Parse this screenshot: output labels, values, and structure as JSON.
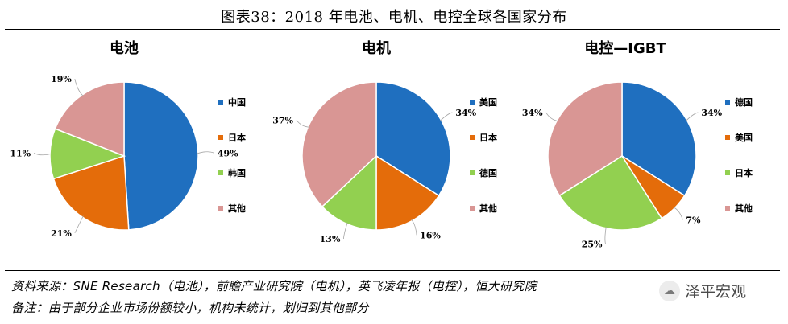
{
  "figure_title": "图表38：2018 年电池、电机、电控全球各国家分布",
  "source_note": "资料来源：SNE Research（电池），前瞻产业研究院（电机），英飞凌年报（电控），恒大研究院",
  "remark_note": "备注：由于部分企业市场份额较小，机构未统计，划归到其他部分",
  "watermark": {
    "text": "泽平宏观",
    "icon": "wechat-icon",
    "glyph": "☁"
  },
  "chart_data": [
    {
      "type": "pie",
      "title": "电池",
      "labels": [
        "中国",
        "日本",
        "韩国",
        "其他"
      ],
      "values": [
        49,
        21,
        11,
        19
      ],
      "colors": [
        "#1f6fbf",
        "#e46c0a",
        "#92d050",
        "#d99694"
      ]
    },
    {
      "type": "pie",
      "title": "电机",
      "labels": [
        "美国",
        "日本",
        "德国",
        "其他"
      ],
      "values": [
        34,
        16,
        13,
        37
      ],
      "colors": [
        "#1f6fbf",
        "#e46c0a",
        "#92d050",
        "#d99694"
      ]
    },
    {
      "type": "pie",
      "title": "电控—IGBT",
      "labels": [
        "德国",
        "美国",
        "日本",
        "其他"
      ],
      "values": [
        34,
        7,
        25,
        34
      ],
      "colors": [
        "#1f6fbf",
        "#e46c0a",
        "#92d050",
        "#d99694"
      ]
    }
  ]
}
